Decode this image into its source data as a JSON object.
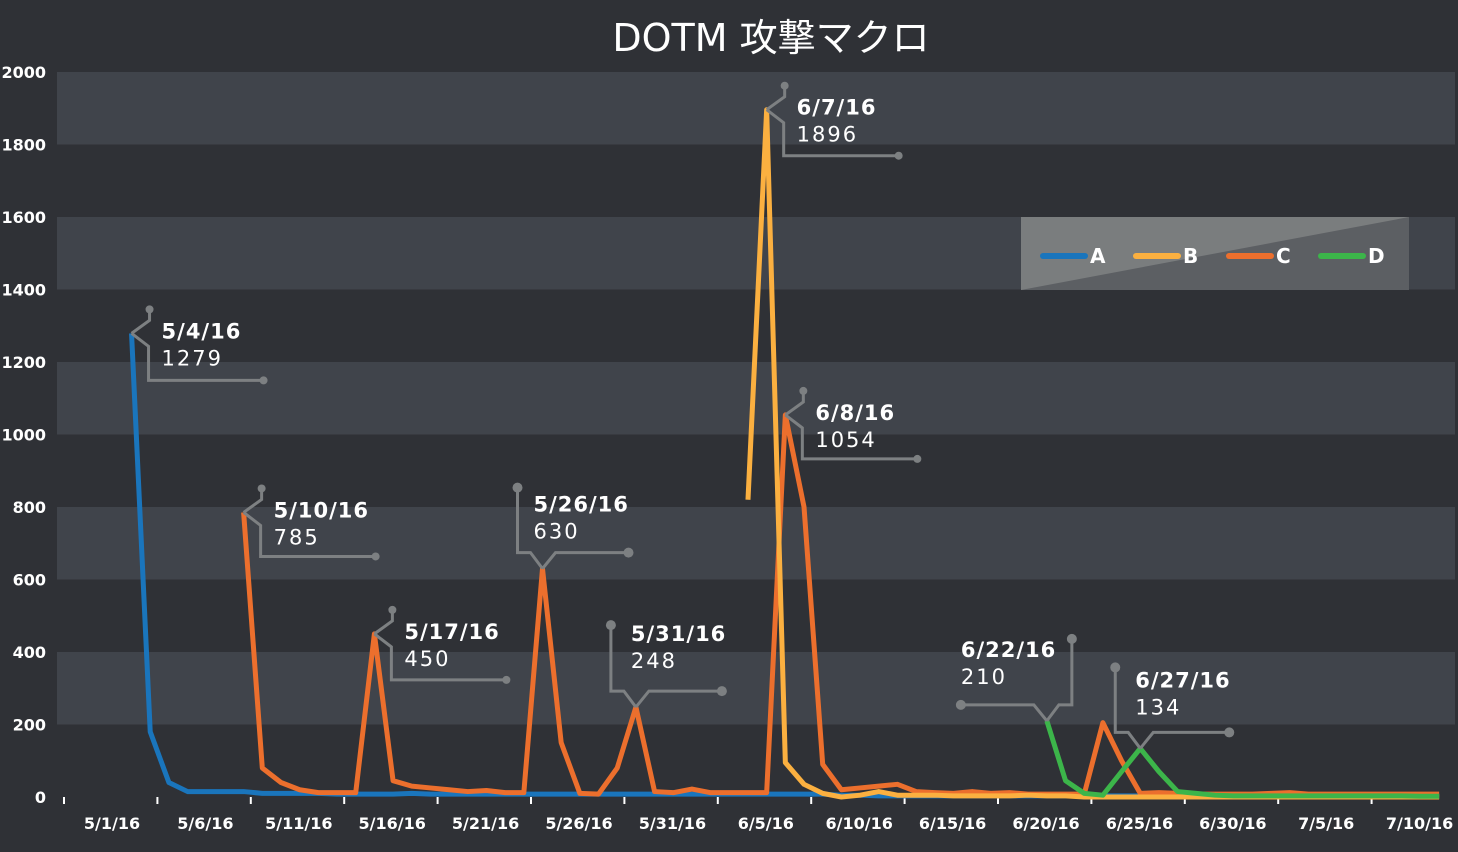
{
  "chart_data": {
    "type": "line",
    "title": "DOTM 攻撃マクロ",
    "xlabel": "",
    "ylabel": "",
    "ylim": [
      0,
      2000
    ],
    "yticks": [
      0,
      200,
      400,
      600,
      800,
      1000,
      1200,
      1400,
      1600,
      1800,
      2000
    ],
    "x_start": "5/1/16",
    "x_end": "7/13/16",
    "xtick_labels": [
      "5/1/16",
      "5/6/16",
      "5/11/16",
      "5/16/16",
      "5/21/16",
      "5/26/16",
      "5/31/16",
      "6/5/16",
      "6/10/16",
      "6/15/16",
      "6/20/16",
      "6/25/16",
      "6/30/16",
      "7/5/16",
      "7/10/16"
    ],
    "grid": "alternating horizontal bands",
    "legend_position": "top-right",
    "series": [
      {
        "name": "A",
        "color": "#1a75bc",
        "start": "5/4/16",
        "values": [
          1279,
          180,
          40,
          15,
          15,
          15,
          15,
          10,
          10,
          10,
          10,
          8,
          8,
          8,
          8,
          10,
          8,
          8,
          8,
          8,
          8,
          8,
          8,
          8,
          8,
          8,
          8,
          8,
          8,
          8,
          8,
          8,
          8,
          8,
          8,
          8,
          8,
          8,
          5,
          5,
          3,
          3,
          3,
          3,
          3,
          3,
          3,
          3,
          3,
          3,
          3,
          3,
          3,
          3,
          3,
          3,
          3,
          3,
          3,
          3,
          3,
          3,
          3,
          3,
          3,
          3,
          3,
          3,
          3,
          3,
          3
        ]
      },
      {
        "name": "C",
        "color": "#ec6f2d",
        "start": "5/10/16",
        "values": [
          785,
          80,
          40,
          20,
          12,
          12,
          12,
          450,
          45,
          30,
          25,
          20,
          15,
          18,
          12,
          12,
          630,
          150,
          10,
          8,
          80,
          248,
          15,
          12,
          22,
          12,
          12,
          12,
          12,
          1054,
          800,
          90,
          20,
          25,
          30,
          35,
          15,
          12,
          10,
          15,
          10,
          12,
          8,
          8,
          8,
          8,
          205,
          100,
          10,
          12,
          10,
          8,
          8,
          8,
          8,
          10,
          12,
          8,
          8,
          8,
          8,
          8,
          8,
          8,
          8
        ]
      },
      {
        "name": "B",
        "color": "#fbb040",
        "start": "6/6/16",
        "values": [
          820,
          1896,
          95,
          35,
          10,
          0,
          5,
          15,
          5,
          5,
          5,
          3,
          3,
          3,
          3,
          5,
          3,
          3,
          0,
          0,
          0,
          0,
          0,
          0,
          0,
          0,
          0,
          0,
          0,
          0,
          0,
          0,
          0,
          0,
          0,
          0,
          0,
          0
        ]
      },
      {
        "name": "D",
        "color": "#3cb54a",
        "start": "6/22/16",
        "values": [
          210,
          45,
          10,
          5,
          70,
          134,
          70,
          15,
          10,
          5,
          3,
          3,
          3,
          3,
          3,
          3,
          3,
          3,
          3,
          3,
          2,
          2
        ]
      }
    ],
    "annotations": [
      {
        "date": "5/4/16",
        "value": "1279",
        "series": "A"
      },
      {
        "date": "5/10/16",
        "value": "785",
        "series": "C"
      },
      {
        "date": "5/17/16",
        "value": "450",
        "series": "C"
      },
      {
        "date": "5/26/16",
        "value": "630",
        "series": "C"
      },
      {
        "date": "5/31/16",
        "value": "248",
        "series": "C"
      },
      {
        "date": "6/7/16",
        "value": "1896",
        "series": "B"
      },
      {
        "date": "6/8/16",
        "value": "1054",
        "series": "C"
      },
      {
        "date": "6/22/16",
        "value": "210",
        "series": "D"
      },
      {
        "date": "6/27/16",
        "value": "134",
        "series": "D"
      }
    ]
  }
}
